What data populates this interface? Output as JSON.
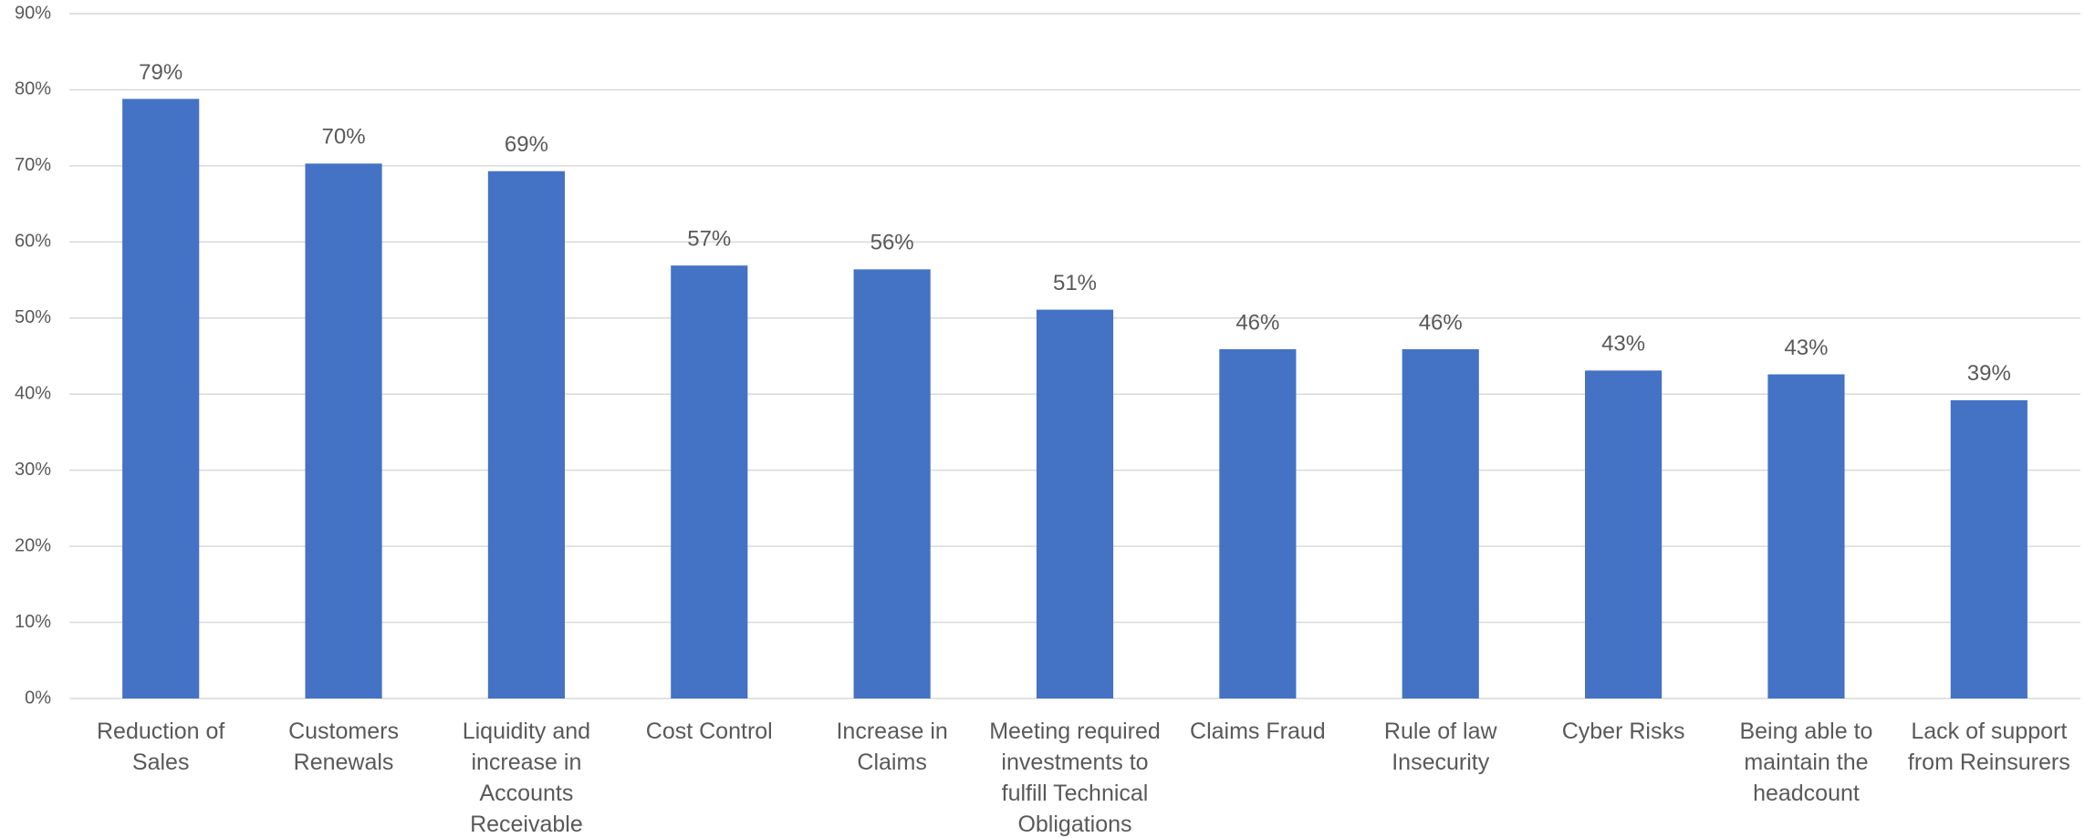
{
  "chart_data": {
    "type": "bar",
    "categories": [
      "Reduction of Sales",
      "Customers Renewals",
      "Liquidity and increase in Accounts Receivable",
      "Cost Control",
      "Increase in Claims",
      "Meeting required investments to fulfill Technical Obligations",
      "Claims Fraud",
      "Rule of law Insecurity",
      "Cyber Risks",
      "Being able to maintain the headcount",
      "Lack of support from Reinsurers"
    ],
    "values": [
      78.8,
      70.3,
      69.3,
      56.9,
      56.4,
      51.1,
      45.9,
      45.9,
      43.1,
      42.6,
      39.2
    ],
    "value_labels": [
      "79%",
      "70%",
      "69%",
      "57%",
      "56%",
      "51%",
      "46%",
      "46%",
      "43%",
      "43%",
      "39%"
    ],
    "color": "#4472c4",
    "ylim": [
      0,
      90
    ],
    "yticks": [
      {
        "value": 0,
        "label": "0%"
      },
      {
        "value": 10,
        "label": "10%"
      },
      {
        "value": 20,
        "label": "20%"
      },
      {
        "value": 30,
        "label": "30%"
      },
      {
        "value": 40,
        "label": "40%"
      },
      {
        "value": 50,
        "label": "50%"
      },
      {
        "value": 60,
        "label": "60%"
      },
      {
        "value": 70,
        "label": "70%"
      },
      {
        "value": 80,
        "label": "80%"
      },
      {
        "value": 90,
        "label": "90%"
      }
    ],
    "grid": true
  }
}
